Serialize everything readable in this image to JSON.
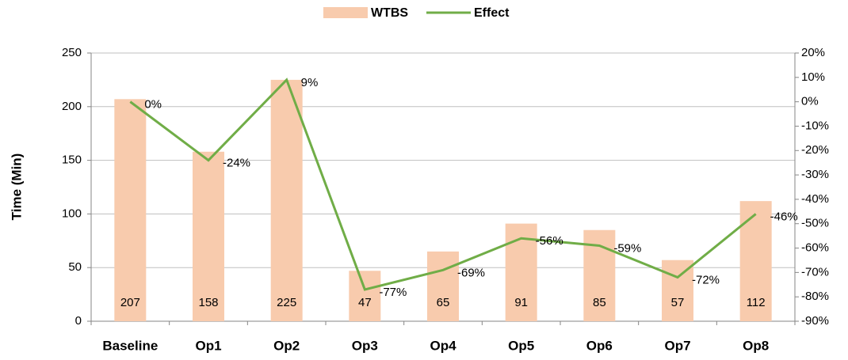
{
  "chart_data": {
    "type": "bar",
    "y_axis_label": "Time (Min)",
    "categories": [
      "Baseline",
      "Op1",
      "Op2",
      "Op3",
      "Op4",
      "Op5",
      "Op6",
      "Op7",
      "Op8"
    ],
    "series": [
      {
        "name": "WTBS",
        "type": "bar",
        "color": "#f8cbad",
        "values": [
          207,
          158,
          225,
          47,
          65,
          91,
          85,
          57,
          112
        ]
      },
      {
        "name": "Effect",
        "type": "line",
        "axis": "y2",
        "color": "#70ad47",
        "values": [
          0,
          -24,
          9,
          -77,
          -69,
          -56,
          -59,
          -72,
          -46
        ],
        "value_labels": [
          "0%",
          "-24%",
          "9%",
          "-77%",
          "-69%",
          "-56%",
          "-59%",
          "-72%",
          "-46%"
        ]
      }
    ],
    "ylim": [
      0,
      250
    ],
    "yticks": [
      0,
      50,
      100,
      150,
      200,
      250
    ],
    "y2lim": [
      -90,
      20
    ],
    "y2ticks": [
      {
        "value": 20,
        "label": "20%"
      },
      {
        "value": 10,
        "label": "10%"
      },
      {
        "value": 0,
        "label": "0%"
      },
      {
        "value": -10,
        "label": "-10%"
      },
      {
        "value": -20,
        "label": "-20%"
      },
      {
        "value": -30,
        "label": "-30%"
      },
      {
        "value": -40,
        "label": "-40%"
      },
      {
        "value": -50,
        "label": "-50%"
      },
      {
        "value": -60,
        "label": "-60%"
      },
      {
        "value": -70,
        "label": "-70%"
      },
      {
        "value": -80,
        "label": "-80%"
      },
      {
        "value": -90,
        "label": "-90%"
      }
    ],
    "grid": true,
    "legend": "top"
  }
}
